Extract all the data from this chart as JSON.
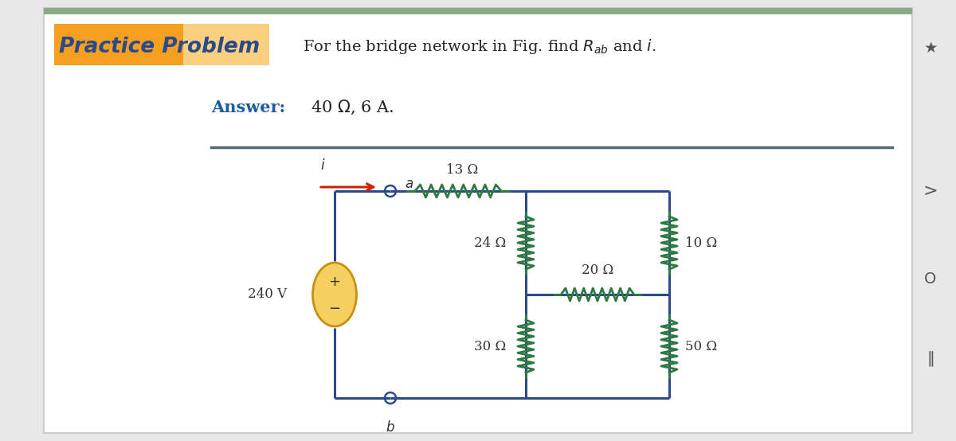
{
  "title_label": "Practice Problem",
  "title_box_color_left": "#F5A520",
  "title_box_color_right": "#FAD080",
  "title_text_color": "#2B4A8B",
  "problem_text": "For the bridge network in Fig. find $R_{ab}$ and $i$.",
  "answer_label": "Answer:",
  "answer_text": "40 Ω, 6 A.",
  "answer_color": "#1B5EA0",
  "bg_color": "#FFFFFF",
  "outer_bg": "#E8E8E8",
  "circuit_color": "#2B4A8B",
  "resistor_color": "#2E7A40",
  "arrow_color": "#CC2200",
  "voltage_fill": "#F5D060",
  "voltage_edge": "#C89010",
  "divider_color": "#4A6A80",
  "resistors": {
    "R13": "13 Ω",
    "R24": "24 Ω",
    "R10": "10 Ω",
    "R20": "20 Ω",
    "R30": "30 Ω",
    "R50": "50 Ω"
  },
  "voltage": "240 V"
}
